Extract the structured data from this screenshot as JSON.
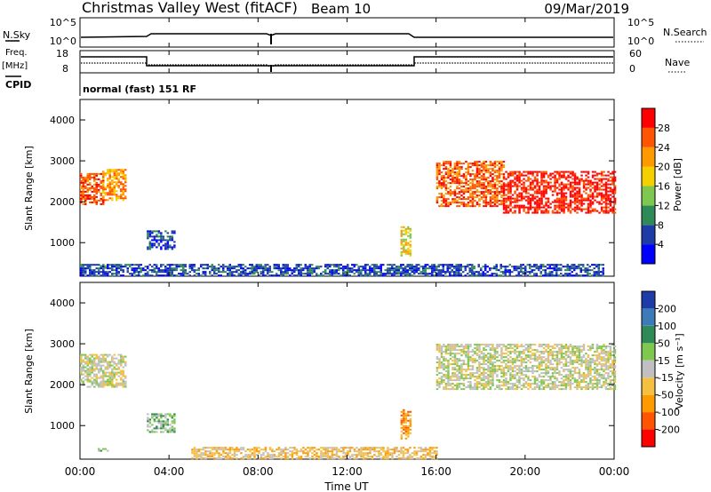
{
  "header": {
    "title": "Christmas Valley West (fitACF)",
    "beam": "Beam 10",
    "date": "09/Mar/2019"
  },
  "panels": {
    "nsky": {
      "left_label": "N.Sky",
      "right_label": "N.Search",
      "left_ticks": [
        "10^5",
        "10^0"
      ],
      "right_ticks": [
        "10^5",
        "10^0"
      ]
    },
    "freq": {
      "left_label_1": "Freq.",
      "left_label_2": "[MHz]",
      "right_label": "Nave",
      "left_ticks": [
        "18",
        "8"
      ],
      "right_ticks": [
        "60",
        "0"
      ]
    },
    "cpid": {
      "label": "CPID",
      "text": "normal (fast) 151 RF"
    }
  },
  "chart_data": [
    {
      "type": "heatmap",
      "name": "power",
      "ylabel": "Slant Range [km]",
      "yticks": [
        1000,
        2000,
        3000,
        4000
      ],
      "ylim": [
        180,
        4500
      ],
      "xlim": [
        0,
        24
      ],
      "colorbar": {
        "label": "Power [dB]",
        "ticks": [
          "4",
          "8",
          "12",
          "16",
          "20",
          "24",
          "28"
        ],
        "colors": [
          "#0000ff",
          "#1e3ca8",
          "#2e8b57",
          "#7ec850",
          "#f5d000",
          "#ff9900",
          "#ff5500",
          "#ff0000"
        ]
      },
      "regions": [
        {
          "t0": 0.0,
          "t1": 1.0,
          "r0": 1950,
          "r1": 2700,
          "level": 6
        },
        {
          "t0": 1.0,
          "t1": 2.0,
          "r0": 2050,
          "r1": 2800,
          "level": 5
        },
        {
          "t0": 3.0,
          "t1": 4.2,
          "r0": 850,
          "r1": 1300,
          "level": 1
        },
        {
          "t0": 0.8,
          "t1": 1.2,
          "r0": 380,
          "r1": 450,
          "level": 3
        },
        {
          "t0": 0.0,
          "t1": 23.5,
          "r0": 200,
          "r1": 480,
          "level": 1
        },
        {
          "t0": 14.4,
          "t1": 14.8,
          "r0": 700,
          "r1": 1400,
          "level": 4
        },
        {
          "t0": 16.0,
          "t1": 19.0,
          "r0": 1900,
          "r1": 3000,
          "level": 6
        },
        {
          "t0": 19.0,
          "t1": 24.0,
          "r0": 1750,
          "r1": 2750,
          "level": 7
        }
      ]
    },
    {
      "type": "heatmap",
      "name": "velocity",
      "ylabel": "Slant Range [km]",
      "yticks": [
        1000,
        2000,
        3000,
        4000
      ],
      "ylim": [
        180,
        4500
      ],
      "xlim": [
        0,
        24
      ],
      "xticks": [
        "00:00",
        "04:00",
        "08:00",
        "12:00",
        "16:00",
        "20:00",
        "00:00"
      ],
      "xlabel": "Time UT",
      "colorbar": {
        "label": "Velocity [m s⁻¹]",
        "ticks": [
          "200",
          "100",
          "50",
          "15",
          "-15",
          "-50",
          "-100",
          "-200"
        ],
        "colors": [
          "#1e3ca8",
          "#3d7ab8",
          "#2e8b57",
          "#7ec850",
          "#c0c0c0",
          "#f5c040",
          "#ff9900",
          "#ff5500",
          "#ff0000"
        ]
      },
      "regions": [
        {
          "t0": 0.0,
          "t1": 2.0,
          "r0": 1950,
          "r1": 2750,
          "level": 4
        },
        {
          "t0": 3.0,
          "t1": 4.2,
          "r0": 850,
          "r1": 1300,
          "level": 3
        },
        {
          "t0": 0.8,
          "t1": 1.2,
          "r0": 380,
          "r1": 450,
          "level": 3
        },
        {
          "t0": 5.0,
          "t1": 16.0,
          "r0": 200,
          "r1": 480,
          "level": 5
        },
        {
          "t0": 14.4,
          "t1": 14.8,
          "r0": 700,
          "r1": 1400,
          "level": 6
        },
        {
          "t0": 16.0,
          "t1": 24.0,
          "r0": 1900,
          "r1": 3000,
          "level": 4
        }
      ]
    }
  ]
}
